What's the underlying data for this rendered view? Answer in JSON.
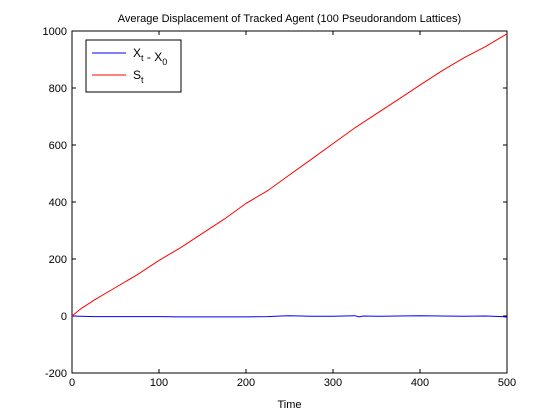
{
  "chart_data": {
    "type": "line",
    "title": "Average Displacement of Tracked Agent (100 Pseudorandom Lattices)",
    "xlabel": "Time",
    "ylabel": "",
    "xlim": [
      0,
      500
    ],
    "ylim": [
      -200,
      1000
    ],
    "xticks": [
      0,
      100,
      200,
      300,
      400,
      500
    ],
    "yticks": [
      -200,
      0,
      200,
      400,
      600,
      800,
      1000
    ],
    "xtick_labels": [
      "0",
      "100",
      "200",
      "300",
      "400",
      "500"
    ],
    "ytick_labels": [
      "-200",
      "0",
      "200",
      "400",
      "600",
      "800",
      "1000"
    ],
    "grid": false,
    "legend_position": "top-left",
    "series": [
      {
        "name": "X_t - X_0",
        "legend_main": "X",
        "legend_sub": "t",
        "legend_mid": " - X",
        "legend_sub2": "0",
        "color": "#0000ff",
        "x": [
          0,
          25,
          50,
          75,
          100,
          125,
          150,
          175,
          200,
          225,
          240,
          250,
          275,
          300,
          325,
          330,
          335,
          350,
          375,
          400,
          425,
          450,
          475,
          495,
          500
        ],
        "y": [
          0,
          -2,
          -2,
          -2,
          -2,
          -3,
          -3,
          -3,
          -3,
          -2,
          0,
          1,
          -1,
          -1,
          1,
          -3,
          0,
          -1,
          0,
          1,
          0,
          -1,
          0,
          -2,
          -4
        ]
      },
      {
        "name": "S_t",
        "legend_main": "S",
        "legend_sub": "t",
        "color": "#ff0000",
        "x": [
          0,
          10,
          25,
          50,
          75,
          100,
          125,
          150,
          175,
          200,
          225,
          250,
          275,
          300,
          325,
          350,
          375,
          400,
          425,
          450,
          475,
          500
        ],
        "y": [
          0,
          25,
          55,
          100,
          145,
          195,
          240,
          290,
          340,
          395,
          440,
          495,
          550,
          605,
          660,
          710,
          760,
          810,
          860,
          905,
          945,
          990
        ]
      }
    ]
  }
}
